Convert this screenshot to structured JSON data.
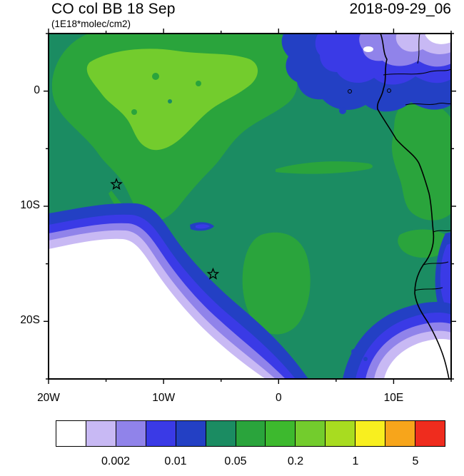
{
  "header": {
    "title": "CO col BB 18 Sep",
    "subtitle": "(1E18*molec/cm2)",
    "date": "2018-09-29_06"
  },
  "chart_data": {
    "type": "heatmap",
    "title": "CO col BB 18 Sep",
    "units": "1E18*molec/cm2",
    "timestamp": "2018-09-29_06",
    "lon_range": [
      -20,
      15
    ],
    "lat_range": [
      -25,
      5
    ],
    "lon_ticks": [
      {
        "label": "20W",
        "deg": -20
      },
      {
        "label": "10W",
        "deg": -10
      },
      {
        "label": "0",
        "deg": 0
      },
      {
        "label": "10E",
        "deg": 10
      }
    ],
    "lat_ticks": [
      {
        "label": "0",
        "deg": 0
      },
      {
        "label": "10S",
        "deg": -10
      },
      {
        "label": "20S",
        "deg": -20
      }
    ],
    "markers": [
      {
        "symbol": "star",
        "lon": -14.1,
        "lat": -8.1
      },
      {
        "symbol": "star",
        "lon": -5.7,
        "lat": -15.9
      }
    ],
    "colorbar": {
      "labels": [
        "0.002",
        "0.01",
        "0.05",
        "0.2",
        "1",
        "5"
      ],
      "levels": [
        0.001,
        0.002,
        0.005,
        0.01,
        0.02,
        0.05,
        0.1,
        0.2,
        0.5,
        1,
        2,
        5
      ],
      "colors": [
        "#ffffff",
        "#c8b9f4",
        "#9083ea",
        "#3a3ae6",
        "#2340c4",
        "#1b8c62",
        "#2aa43c",
        "#3db92e",
        "#73cc2d",
        "#a8dc20",
        "#f8ef1f",
        "#f7a51b",
        "#ef2c1e"
      ]
    },
    "features": [
      {
        "area": "northwest biomass-burning plume over tropical Atlantic",
        "approx_value": "0.2-1 (yellow-green core ~0.5, green fringe 0.1-0.2)"
      },
      {
        "area": "map background (central Atlantic and African interior)",
        "approx_value": "0.05-0.1 (teal)"
      },
      {
        "area": "south-central green blob near 6W,15S and coastal Africa strip",
        "approx_value": "0.1-0.2"
      },
      {
        "area": "southwest ocean and bottom-right ocean",
        "approx_value": "<0.001 (white) with banded gradient 0.001-0.05 at edges"
      },
      {
        "area": "northeast corner (NE Africa)",
        "approx_value": "<0.001-0.02 banded low-CO region"
      },
      {
        "area": "Angola/Namibia coastal strip",
        "approx_value": "0.005-0.02 (blue)"
      }
    ]
  }
}
